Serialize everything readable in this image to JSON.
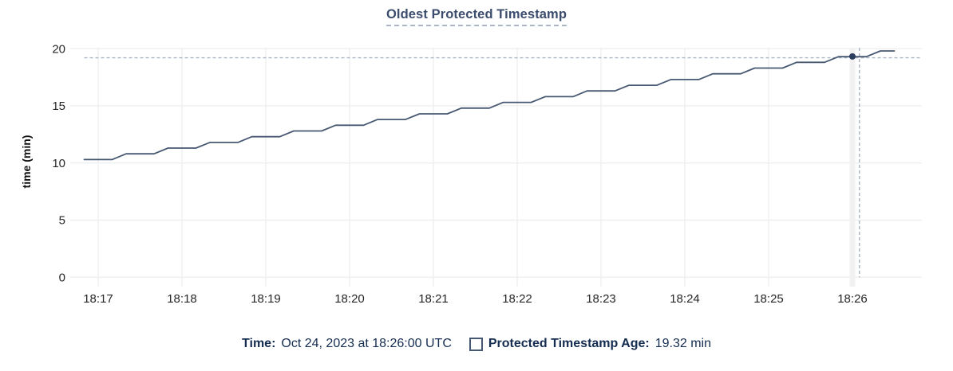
{
  "header": {
    "title": "Oldest Protected Timestamp"
  },
  "legend": {
    "time_label": "Time:",
    "time_value": "Oct 24, 2023 at 18:26:00 UTC",
    "series_label": "Protected Timestamp Age:",
    "series_value": "19.32 min"
  },
  "colors": {
    "accent_title": "#3b4c6d",
    "title_underline": "#aab6c4",
    "series_line": "#475872",
    "hover_dot": "#2c3e5d",
    "crosshair": "#a9b4c2",
    "grid": "#efefef",
    "hover_band": "#f1f1f1",
    "axis_text": "#262626",
    "legend_text": "#142c50",
    "swatch_border": "#475872"
  },
  "chart_data": {
    "type": "line",
    "title": "Oldest Protected Timestamp",
    "xlabel": "",
    "ylabel": "time (min)",
    "ylim": [
      0,
      20
    ],
    "yticks": [
      0,
      5,
      10,
      15,
      20
    ],
    "grid": true,
    "legend_position": "bottom",
    "x_unit": "seconds after 18:00 UTC",
    "x_origin_sec": 1020,
    "xticks": [
      [
        1020,
        "18:17"
      ],
      [
        1080,
        "18:18"
      ],
      [
        1140,
        "18:19"
      ],
      [
        1200,
        "18:20"
      ],
      [
        1260,
        "18:21"
      ],
      [
        1320,
        "18:22"
      ],
      [
        1380,
        "18:23"
      ],
      [
        1440,
        "18:24"
      ],
      [
        1500,
        "18:25"
      ],
      [
        1560,
        "18:26"
      ]
    ],
    "series": [
      {
        "name": "Protected Timestamp Age",
        "points": [
          [
            1010,
            10.3
          ],
          [
            1020,
            10.3
          ],
          [
            1030,
            10.3
          ],
          [
            1040,
            10.8
          ],
          [
            1050,
            10.8
          ],
          [
            1060,
            10.8
          ],
          [
            1070,
            11.3
          ],
          [
            1080,
            11.3
          ],
          [
            1090,
            11.3
          ],
          [
            1100,
            11.8
          ],
          [
            1110,
            11.8
          ],
          [
            1120,
            11.8
          ],
          [
            1130,
            12.3
          ],
          [
            1140,
            12.3
          ],
          [
            1150,
            12.3
          ],
          [
            1160,
            12.8
          ],
          [
            1170,
            12.8
          ],
          [
            1180,
            12.8
          ],
          [
            1190,
            13.3
          ],
          [
            1200,
            13.3
          ],
          [
            1210,
            13.3
          ],
          [
            1220,
            13.8
          ],
          [
            1230,
            13.8
          ],
          [
            1240,
            13.8
          ],
          [
            1250,
            14.3
          ],
          [
            1260,
            14.3
          ],
          [
            1270,
            14.3
          ],
          [
            1280,
            14.8
          ],
          [
            1290,
            14.8
          ],
          [
            1300,
            14.8
          ],
          [
            1310,
            15.3
          ],
          [
            1320,
            15.3
          ],
          [
            1330,
            15.3
          ],
          [
            1340,
            15.8
          ],
          [
            1350,
            15.8
          ],
          [
            1360,
            15.8
          ],
          [
            1370,
            16.3
          ],
          [
            1380,
            16.3
          ],
          [
            1390,
            16.3
          ],
          [
            1400,
            16.8
          ],
          [
            1410,
            16.8
          ],
          [
            1420,
            16.8
          ],
          [
            1430,
            17.3
          ],
          [
            1440,
            17.3
          ],
          [
            1450,
            17.3
          ],
          [
            1460,
            17.8
          ],
          [
            1470,
            17.8
          ],
          [
            1480,
            17.8
          ],
          [
            1490,
            18.3
          ],
          [
            1500,
            18.3
          ],
          [
            1510,
            18.3
          ],
          [
            1520,
            18.8
          ],
          [
            1530,
            18.8
          ],
          [
            1540,
            18.8
          ],
          [
            1550,
            19.3
          ],
          [
            1560,
            19.3
          ],
          [
            1570,
            19.3
          ],
          [
            1580,
            19.8
          ],
          [
            1590,
            19.8
          ]
        ]
      }
    ],
    "hover": {
      "x_sec": 1565,
      "y_value": 19.2,
      "dot_sec": 1560,
      "dot_value": 19.32
    }
  }
}
